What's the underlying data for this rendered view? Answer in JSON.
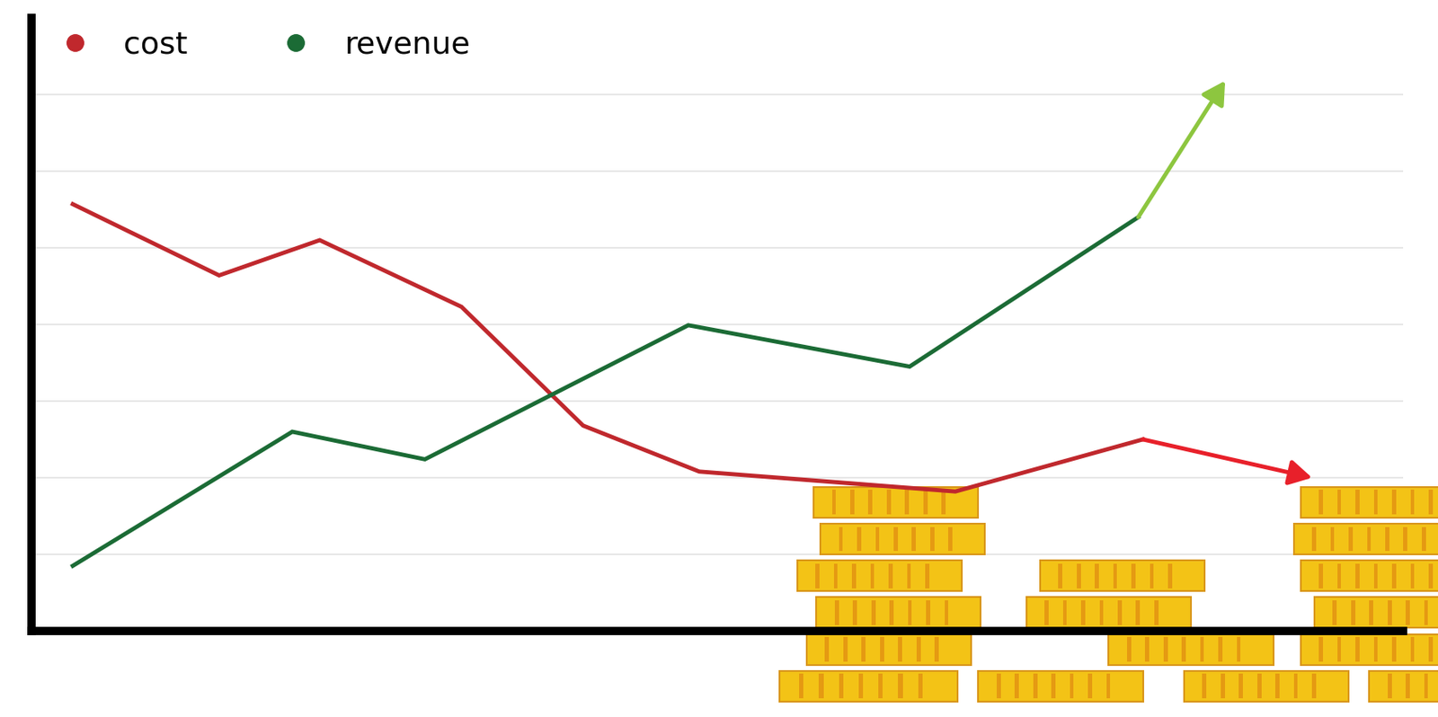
{
  "chart_data": {
    "type": "line",
    "series": [
      {
        "name": "cost",
        "color": "#c0282d",
        "x": [
          0.45,
          2.05,
          3.15,
          4.7,
          6.03,
          7.3,
          10.1,
          12.15,
          14.0
        ],
        "values": [
          5.57,
          4.64,
          5.1,
          4.23,
          2.68,
          2.08,
          1.82,
          2.5,
          2.0
        ]
      },
      {
        "name": "revenue",
        "color": "#1b6b35",
        "x": [
          0.45,
          2.85,
          4.3,
          7.18,
          9.6,
          12.1,
          13.05
        ],
        "values": [
          0.85,
          2.6,
          2.24,
          3.99,
          3.45,
          5.4,
          7.18
        ]
      }
    ],
    "xlim": [
      0,
      15
    ],
    "xticks": [],
    "ylim": [
      0,
      8
    ],
    "yticks": [
      1,
      2,
      3,
      4,
      5,
      6,
      7
    ],
    "grid": "y",
    "legend": "upper left",
    "tick_labels": false
  }
}
